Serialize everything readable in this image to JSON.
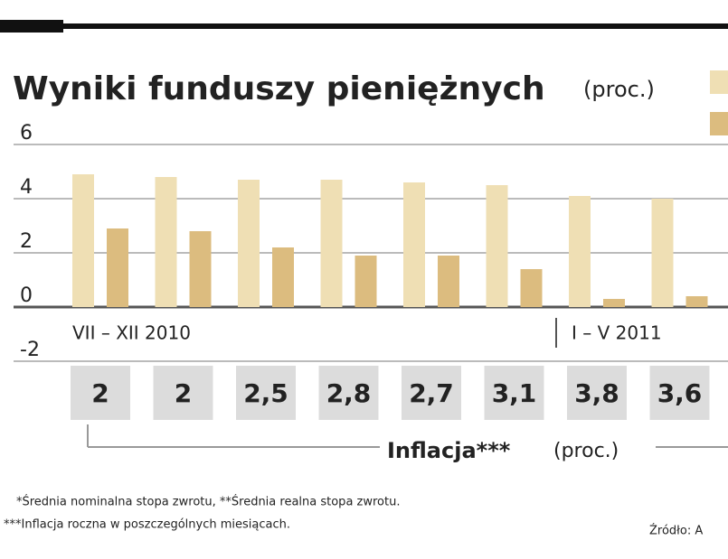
{
  "chart_data": {
    "type": "bar",
    "title": "Wyniki funduszy pieniężnych",
    "unit": "(proc.)",
    "series": [
      {
        "color": "#efdfb4",
        "values": [
          4.9,
          4.8,
          4.7,
          4.7,
          4.6,
          4.5,
          4.1,
          4.0
        ]
      },
      {
        "color": "#dcbc7f",
        "values": [
          2.9,
          2.8,
          2.2,
          1.9,
          1.9,
          1.4,
          0.3,
          0.4
        ]
      }
    ],
    "ylim": [
      -2,
      6
    ],
    "yticks": [
      -2,
      0,
      2,
      4,
      6
    ],
    "grid": true,
    "periods": [
      "VII – XII 2010",
      "I – V 2011"
    ],
    "inflation": {
      "label": "Inflacja***",
      "unit": "(proc.)",
      "values": [
        2,
        2,
        2.5,
        2.8,
        2.7,
        3.1,
        3.8,
        3.6
      ],
      "value_labels": [
        "2",
        "2",
        "2,5",
        "2,8",
        "2,7",
        "3,1",
        "3,8",
        "3,6"
      ]
    },
    "footnotes": [
      "*Średnia nominalna stopa zwrotu, **Średnia realna stopa zwrotu.",
      "***Inflacja roczna w poszczególnych miesiącach."
    ],
    "source": "Źródło: A"
  }
}
